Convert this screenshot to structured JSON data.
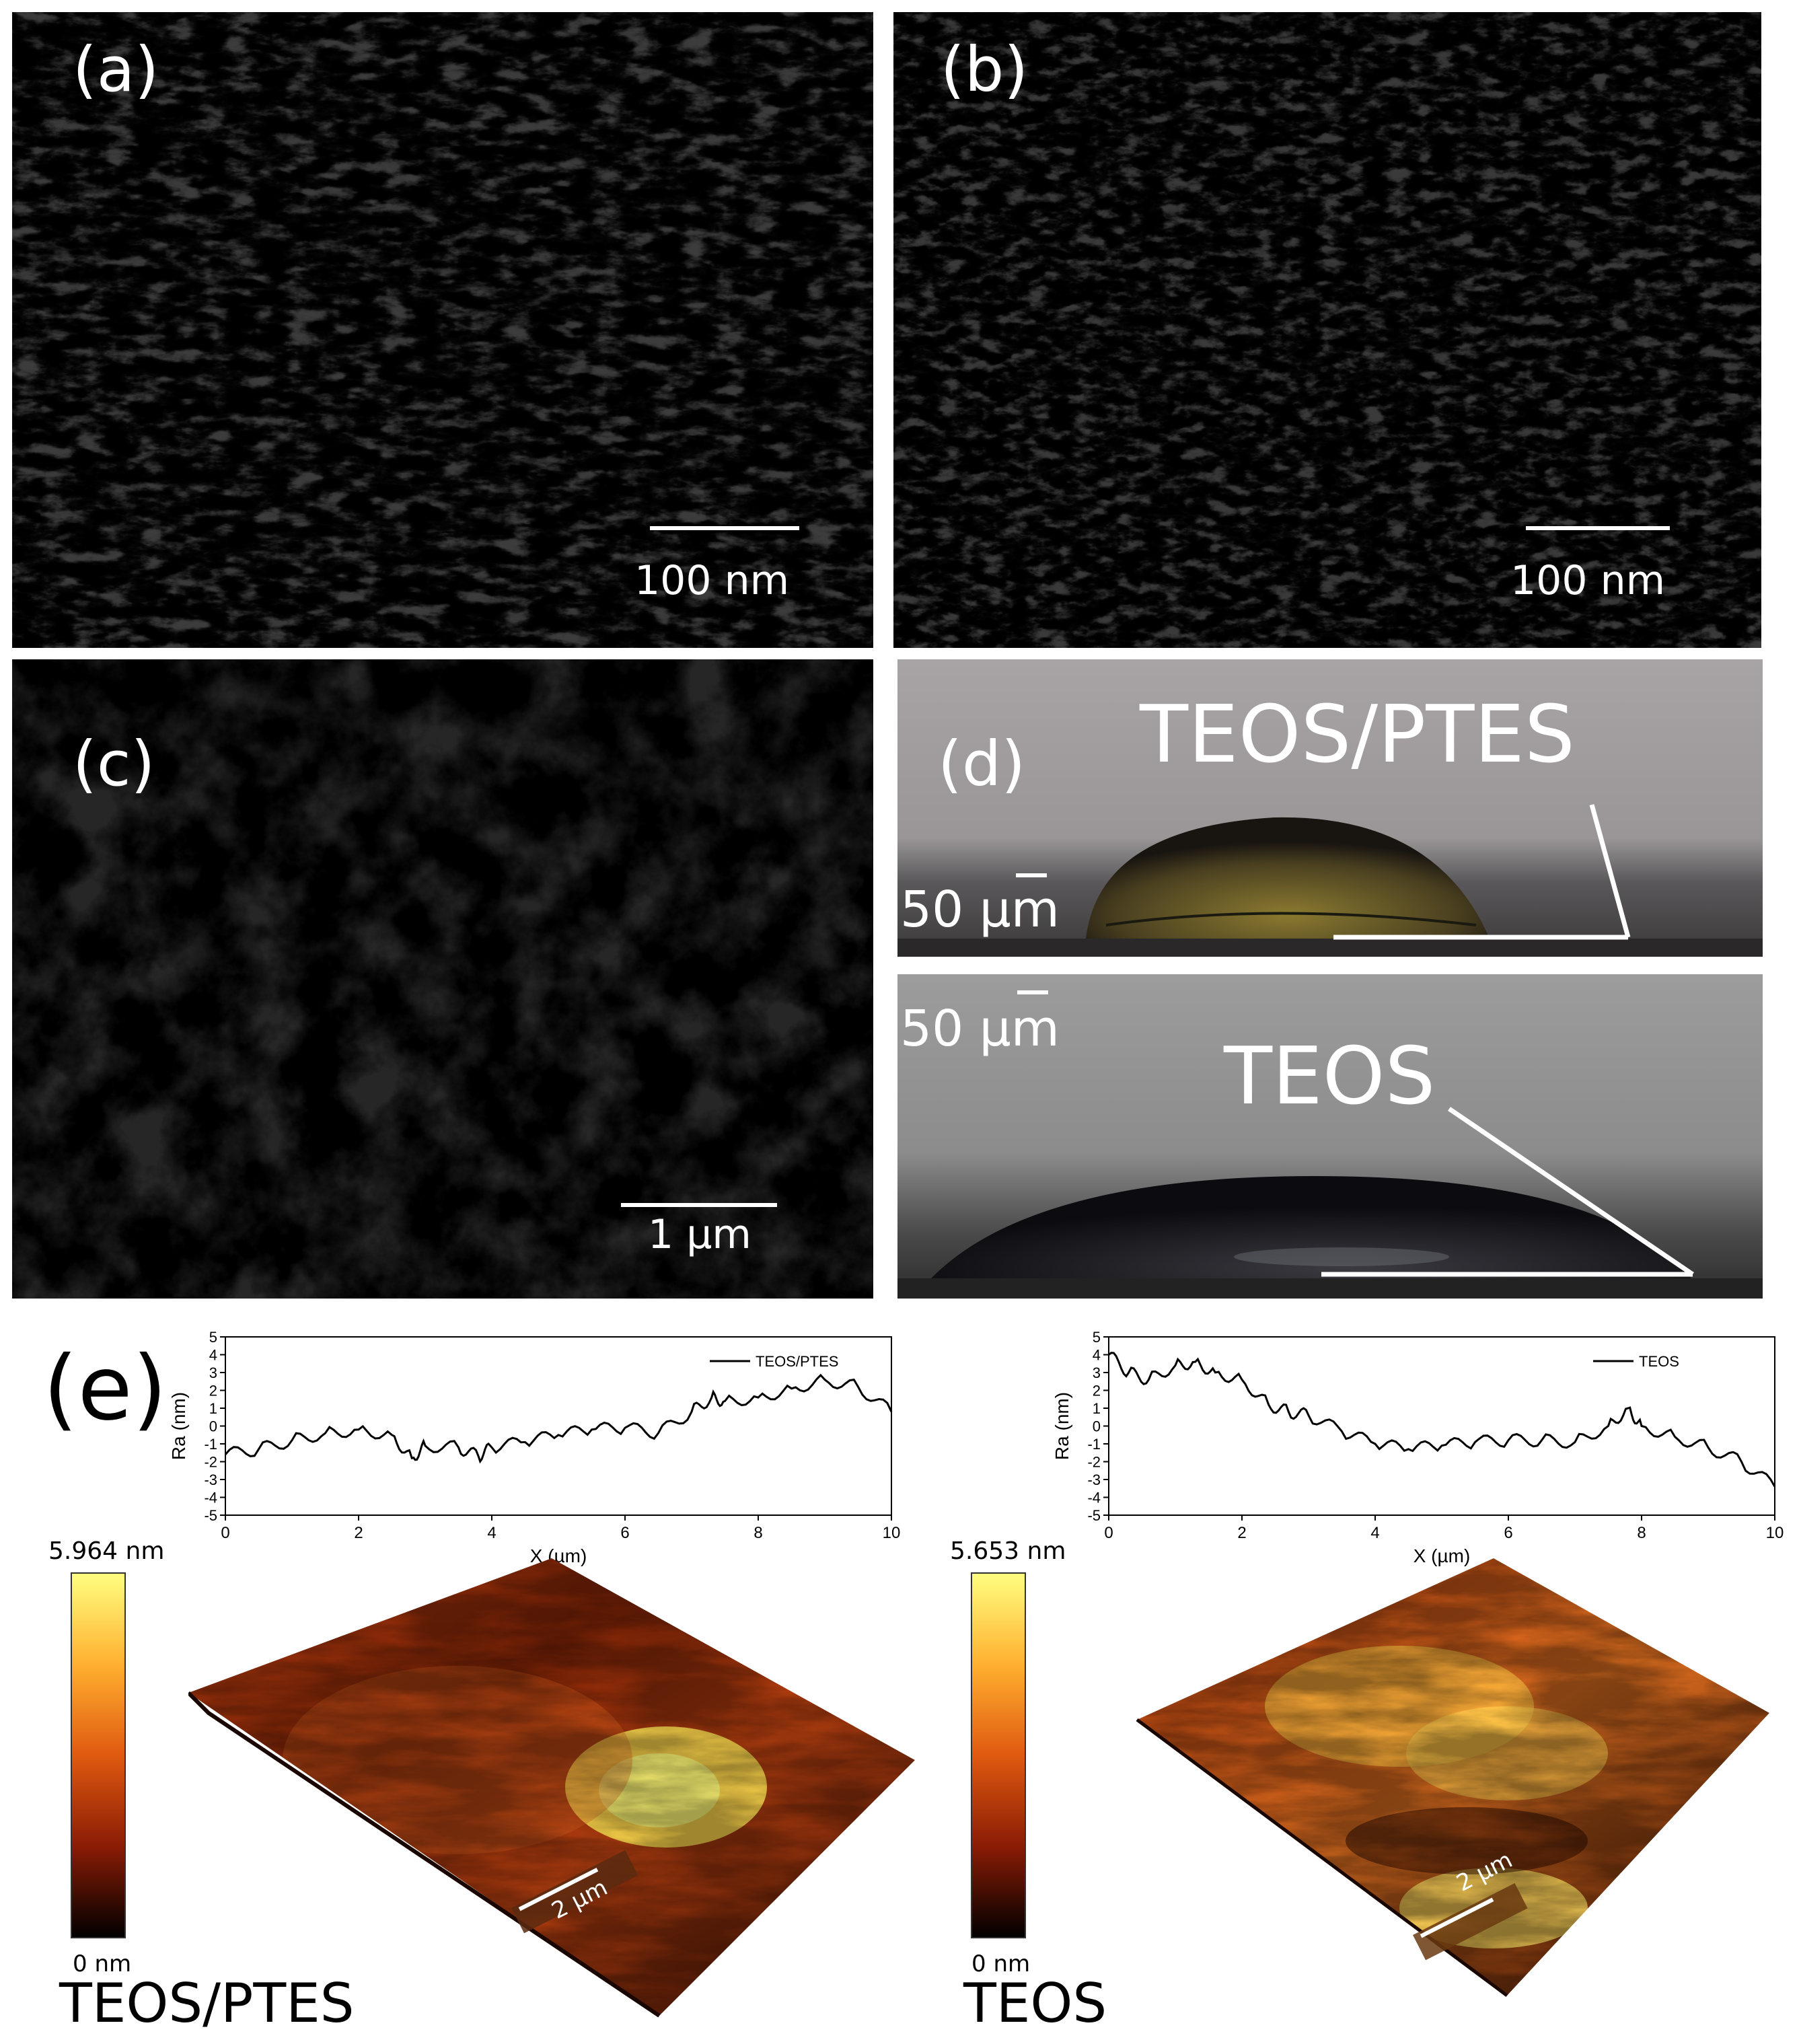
{
  "panels": {
    "a": {
      "label": "(a)",
      "scale_bar": "100 nm"
    },
    "b": {
      "label": "(b)",
      "scale_bar": "100 nm"
    },
    "c": {
      "label": "(c)",
      "scale_bar": "1 µm"
    },
    "d": {
      "label": "(d)",
      "top_title": "TEOS/PTES",
      "top_scale": "50 µm",
      "bottom_title": "TEOS",
      "bottom_scale": "50 µm"
    },
    "e": {
      "label": "(e)"
    }
  },
  "afm": {
    "left": {
      "max_label": "5.964 nm",
      "min_label": "0 nm",
      "sample": "TEOS/PTES",
      "scale_bar": "2 µm"
    },
    "right": {
      "max_label": "5.653 nm",
      "min_label": "0 nm",
      "sample": "TEOS",
      "scale_bar": "2 µm"
    }
  },
  "chart_data": [
    {
      "type": "line",
      "title": "",
      "xlabel": "X (µm)",
      "ylabel": "Ra (nm)",
      "xlim": [
        0,
        10
      ],
      "ylim": [
        -5,
        5
      ],
      "xticks": [
        0,
        2,
        4,
        6,
        8,
        10
      ],
      "yticks": [
        5,
        4,
        3,
        2,
        1,
        0,
        -1,
        -2,
        -3,
        -4,
        -5
      ],
      "legend_position": "top-right",
      "series": [
        {
          "name": "TEOS/PTES",
          "x": [
            0,
            0.5,
            1,
            1.5,
            2,
            2.5,
            2.8,
            3,
            3.5,
            3.8,
            4,
            4.5,
            5,
            5.5,
            6,
            6.5,
            7,
            7.3,
            7.5,
            8,
            8.5,
            9,
            9.5,
            10
          ],
          "y": [
            -1.6,
            -1.3,
            -0.8,
            -0.4,
            -0.2,
            -0.5,
            -1.8,
            -1.1,
            -1.2,
            -1.7,
            -1.2,
            -0.9,
            -0.5,
            -0.2,
            -0.1,
            -0.4,
            0.8,
            1.6,
            1.4,
            1.6,
            2.1,
            2.6,
            2.2,
            0.8
          ]
        }
      ]
    },
    {
      "type": "line",
      "title": "",
      "xlabel": "X (µm)",
      "ylabel": "Ra (nm)",
      "xlim": [
        0,
        10
      ],
      "ylim": [
        -5,
        5
      ],
      "xticks": [
        0,
        2,
        4,
        6,
        8,
        10
      ],
      "yticks": [
        5,
        4,
        3,
        2,
        1,
        0,
        -1,
        -2,
        -3,
        -4,
        -5
      ],
      "legend_position": "top-right",
      "series": [
        {
          "name": "TEOS",
          "x": [
            0,
            0.3,
            0.6,
            1,
            1.3,
            1.6,
            2,
            2.4,
            2.7,
            3,
            3.5,
            4,
            4.5,
            5,
            5.5,
            6,
            6.5,
            7,
            7.5,
            7.8,
            8,
            8.5,
            9,
            9.5,
            10
          ],
          "y": [
            4.0,
            3.0,
            2.6,
            3.4,
            3.6,
            3.0,
            2.6,
            1.2,
            0.8,
            0.6,
            -0.3,
            -1.0,
            -1.3,
            -1.1,
            -0.9,
            -0.8,
            -0.8,
            -0.9,
            0.0,
            1.0,
            0.0,
            -0.6,
            -1.2,
            -2.0,
            -3.4
          ]
        }
      ]
    }
  ]
}
